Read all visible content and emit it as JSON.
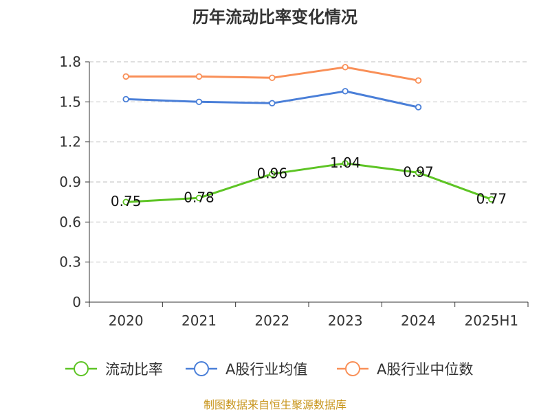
{
  "chart_data": {
    "type": "line",
    "title": "历年流动比率变化情况",
    "categories": [
      "2020",
      "2021",
      "2022",
      "2023",
      "2024",
      "2025H1"
    ],
    "y_ticks": [
      "0",
      "0.3",
      "0.6",
      "0.9",
      "1.2",
      "1.5",
      "1.8"
    ],
    "ylim": [
      0,
      1.8
    ],
    "grid": true,
    "legend_position": "bottom",
    "series": [
      {
        "name": "流动比率",
        "color": "#5dc424",
        "show_labels": true,
        "values": [
          0.75,
          0.78,
          0.96,
          1.04,
          0.97,
          0.77
        ],
        "labels": [
          "0.75",
          "0.78",
          "0.96",
          "1.04",
          "0.97",
          "0.77"
        ]
      },
      {
        "name": "A股行业均值",
        "color": "#4a7fd8",
        "show_labels": false,
        "values": [
          1.52,
          1.5,
          1.49,
          1.58,
          1.46,
          null
        ]
      },
      {
        "name": "A股行业中位数",
        "color": "#f98f57",
        "show_labels": false,
        "values": [
          1.69,
          1.69,
          1.68,
          1.76,
          1.66,
          null
        ]
      }
    ]
  },
  "source": {
    "text": "制图数据来自恒生聚源数据库",
    "color": "#c8961e"
  }
}
